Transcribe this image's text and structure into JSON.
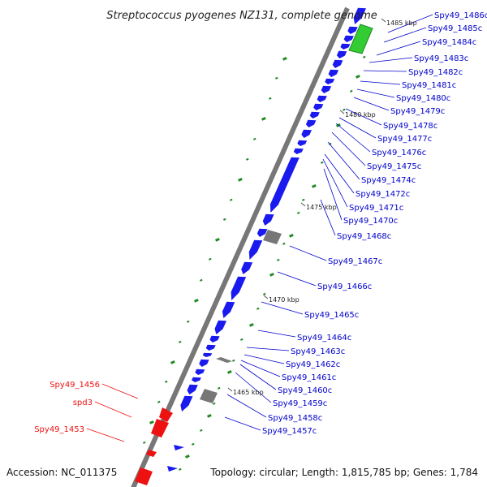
{
  "title": "Streptococcus pyogenes NZ131, complete genome",
  "accession_text": "Accession: NC_011375",
  "topology_text": "Topology: circular; Length: 1,815,785 bp; Genes: 1,784",
  "colors": {
    "backbone": "#777777",
    "cds_reverse": "#1a1aee",
    "cds_forward": "#ee1111",
    "highlight": "#33cc33",
    "rna": "#777777",
    "gc_marks": "#228b22",
    "label_reverse": "#0000cc",
    "label_forward": "#ee1111"
  },
  "scale_ticks": [
    {
      "label": "1485 kbp"
    },
    {
      "label": "1480 kbp"
    },
    {
      "label": "1475 kbp"
    },
    {
      "label": "1470 kbp"
    },
    {
      "label": "1465 kbp"
    }
  ],
  "reverse_genes": [
    "Spy49_1486c",
    "Spy49_1485c",
    "Spy49_1484c",
    "Spy49_1483c",
    "Spy49_1482c",
    "Spy49_1481c",
    "Spy49_1480c",
    "Spy49_1479c",
    "Spy49_1478c",
    "Spy49_1477c",
    "Spy49_1476c",
    "Spy49_1475c",
    "Spy49_1474c",
    "Spy49_1472c",
    "Spy49_1471c",
    "Spy49_1470c",
    "Spy49_1468c",
    "Spy49_1467c",
    "Spy49_1466c",
    "Spy49_1465c",
    "Spy49_1464c",
    "Spy49_1463c",
    "Spy49_1462c",
    "Spy49_1461c",
    "Spy49_1460c",
    "Spy49_1459c",
    "Spy49_1458c",
    "Spy49_1457c"
  ],
  "forward_genes": [
    "Spy49_1456",
    "spd3",
    "Spy49_1453"
  ]
}
